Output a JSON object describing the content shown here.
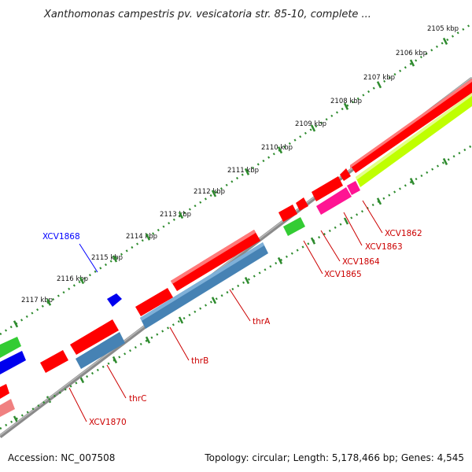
{
  "title": "Xanthomonas campestris pv. vesicatoria str. 85-10, complete ...",
  "ticks": [
    "2105 kbp",
    "2106 kbp",
    "2107 kbp",
    "2108 kbp",
    "2109 kbp",
    "2110 kbp",
    "2111 kbp",
    "2112 kbp",
    "2113 kbp",
    "2114 kbp",
    "2115 kbp",
    "2116 kbp",
    "2117 kbp"
  ],
  "genes": [
    {
      "label": "XCV1868",
      "color": "#0000ff"
    },
    {
      "label": "XCV1862",
      "color": "#cc0000"
    },
    {
      "label": "XCV1863",
      "color": "#cc0000"
    },
    {
      "label": "XCV1864",
      "color": "#cc0000"
    },
    {
      "label": "XCV1865",
      "color": "#cc0000"
    },
    {
      "label": "thrA",
      "color": "#cc0000"
    },
    {
      "label": "thrB",
      "color": "#cc0000"
    },
    {
      "label": "thrC",
      "color": "#cc0000"
    },
    {
      "label": "XCV1870",
      "color": "#cc0000"
    }
  ],
  "footer": {
    "accession": "Accession: NC_007508",
    "summary": "Topology: circular; Length: 5,178,466 bp; Genes: 4,545"
  }
}
